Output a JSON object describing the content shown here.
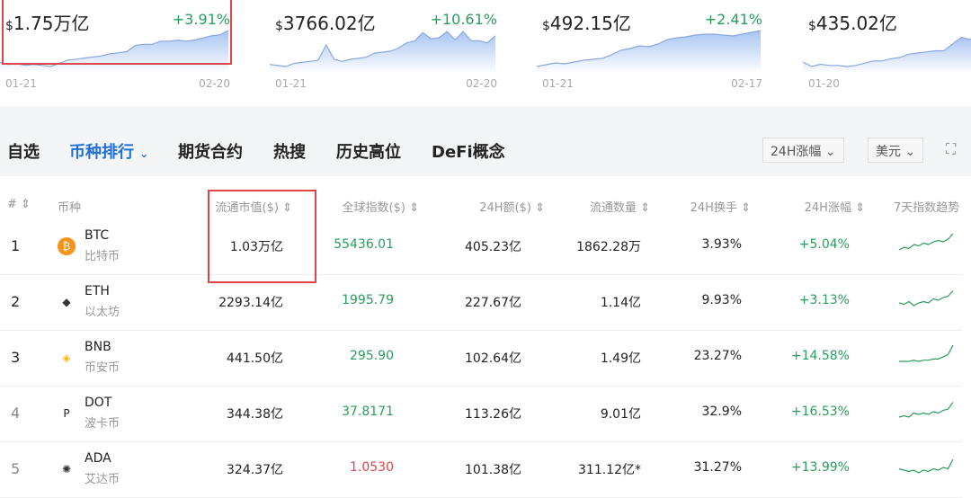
{
  "cards": [
    {
      "value": "1.75万亿",
      "change": "+3.91%",
      "start": "01-21",
      "end": "02-20",
      "points": [
        30,
        32,
        31,
        33,
        32,
        33,
        34,
        31,
        28,
        27,
        26,
        25,
        24,
        22,
        21,
        20,
        14,
        13,
        13,
        10,
        10,
        9,
        10,
        9,
        7,
        5,
        4,
        0
      ]
    },
    {
      "value": "3766.02亿",
      "change": "+10.61%",
      "start": "01-21",
      "end": "02-20",
      "points": [
        33,
        34,
        35,
        32,
        31,
        30,
        29,
        14,
        28,
        30,
        28,
        27,
        26,
        22,
        21,
        20,
        17,
        12,
        10,
        2,
        8,
        7,
        1,
        9,
        1,
        10,
        10,
        12,
        5
      ]
    },
    {
      "value": "492.15亿",
      "change": "+2.41%",
      "start": "01-21",
      "end": "02-17",
      "points": [
        40,
        38,
        36,
        37,
        35,
        33,
        32,
        31,
        27,
        22,
        20,
        17,
        18,
        15,
        10,
        8,
        7,
        5,
        4,
        4,
        5,
        6,
        4,
        2,
        0
      ]
    },
    {
      "value": "435.02亿",
      "change": "0",
      "start": "01-20",
      "end": "",
      "points": [
        28,
        32,
        30,
        31,
        31,
        32,
        31,
        29,
        27,
        27,
        25,
        24,
        21,
        20,
        19,
        18,
        18,
        12,
        6,
        8,
        5
      ]
    }
  ],
  "tabs": [
    "自选",
    "币种排行",
    "期货合约",
    "热搜",
    "历史高位",
    "DeFi概念"
  ],
  "active_tab": 1,
  "filters": {
    "sort": "24H涨幅",
    "currency": "美元"
  },
  "columns": [
    "#",
    "币种",
    "流通市值($)",
    "全球指数($)",
    "24H额($)",
    "流通数量",
    "24H换手",
    "24H涨幅",
    "7天指数趋势"
  ],
  "rows": [
    {
      "rank": "1",
      "symbol": "BTC",
      "name": "比特币",
      "mcap": "1.03万亿",
      "index": "55436.01",
      "index_color": "#2a9d5c",
      "volume": "405.23亿",
      "supply": "1862.28万",
      "turnover": "3.93%",
      "change": "+5.04%",
      "icon_color": "#f7931a",
      "icon": "₿",
      "trend": [
        12,
        10,
        11,
        8,
        9,
        7,
        8,
        6,
        5,
        6,
        4,
        0
      ]
    },
    {
      "rank": "2",
      "symbol": "ETH",
      "name": "以太坊",
      "mcap": "2293.14亿",
      "index": "1995.79",
      "index_color": "#2a9d5c",
      "volume": "227.67亿",
      "supply": "1.14亿",
      "turnover": "9.93%",
      "change": "+3.13%",
      "icon_color": "#333",
      "icon": "◆",
      "trend": [
        10,
        11,
        9,
        12,
        10,
        9,
        10,
        7,
        8,
        6,
        5,
        1
      ]
    },
    {
      "rank": "3",
      "symbol": "BNB",
      "name": "币安币",
      "mcap": "441.50亿",
      "index": "295.90",
      "index_color": "#2a9d5c",
      "volume": "102.64亿",
      "supply": "1.49亿",
      "turnover": "23.27%",
      "change": "+14.58%",
      "icon_color": "#f0b90b",
      "icon": "◈",
      "trend": [
        14,
        14,
        14,
        13,
        14,
        13,
        13,
        12,
        12,
        10,
        8,
        0
      ]
    },
    {
      "rank": "4",
      "symbol": "DOT",
      "name": "波卡币",
      "mcap": "344.38亿",
      "index": "37.8171",
      "index_color": "#2a9d5c",
      "volume": "113.26亿",
      "supply": "9.01亿",
      "turnover": "32.9%",
      "change": "+16.53%",
      "icon_color": "#222",
      "icon": "P",
      "trend": [
        12,
        11,
        12,
        9,
        10,
        9,
        10,
        8,
        9,
        7,
        6,
        1
      ]
    },
    {
      "rank": "5",
      "symbol": "ADA",
      "name": "艾达币",
      "mcap": "324.37亿",
      "index": "1.0530",
      "index_color": "#e0454a",
      "volume": "101.38亿",
      "supply": "311.12亿*",
      "turnover": "31.27%",
      "change": "+13.99%",
      "icon_color": "#333",
      "icon": "✺",
      "trend": [
        9,
        10,
        11,
        10,
        12,
        10,
        11,
        9,
        10,
        8,
        9,
        2
      ]
    }
  ]
}
